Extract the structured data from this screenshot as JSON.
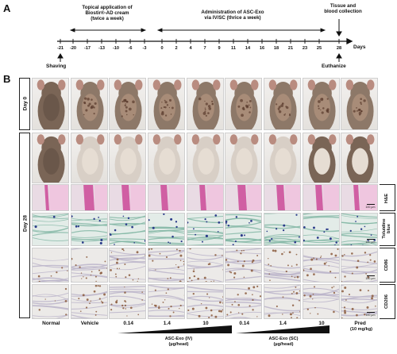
{
  "panel_a": {
    "letter": "A",
    "phase1_label_line1": "Topical application of",
    "phase1_label_line2": "Biostir®-AD cream",
    "phase1_label_line3": "(twice a week)",
    "phase2_label_line1": "Administration of ASC-Exo",
    "phase2_label_line2": "via IV/SC (thrice a week)",
    "tissue_label_line1": "Tissue and",
    "tissue_label_line2": "blood collection",
    "days_label": "Days",
    "shaving_label": "Shaving",
    "euthanize_label": "Euthanize",
    "ticks": [
      "-21",
      "-20",
      "-17",
      "-13",
      "-10",
      "-6",
      "-3",
      "0",
      "2",
      "4",
      "7",
      "9",
      "11",
      "14",
      "16",
      "18",
      "21",
      "23",
      "25",
      "28"
    ]
  },
  "panel_b": {
    "letter": "B",
    "row_groups": [
      "Day 0",
      "Day 28"
    ],
    "stain_labels": {
      "he": "H&E",
      "tb_line1": "Toluidine",
      "tb_line2": "blue",
      "cd86": "CD86",
      "cd206": "CD206"
    },
    "scale_bar": "100 µm",
    "columns": [
      "Normal",
      "Vehicle",
      "0.14",
      "1.4",
      "10",
      "0.14",
      "1.4",
      "10",
      "Pred"
    ],
    "pred_dose": "(10 mg/kg)",
    "group_iv_line1": "ASC-Exo (IV)",
    "group_iv_line2": "(µg/head)",
    "group_sc_line1": "ASC-Exo (SC)",
    "group_sc_line2": "(µg/head)"
  },
  "colors": {
    "he_pink": "#d05fa3",
    "tb_teal": "#7fb5a3",
    "ihc_brown": "#8b5a3c",
    "mouse_brown": "#6f5a4c",
    "mouse_pale": "#d8cfc6"
  }
}
